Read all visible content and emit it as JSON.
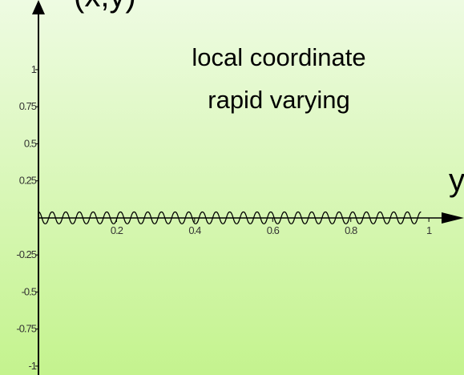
{
  "chart_data": {
    "type": "line",
    "y_label": "(x,y)",
    "x_label": "y",
    "annotations": [
      "local coordinate",
      "rapid varying"
    ],
    "x": [
      0,
      0.0175,
      0.035,
      0.0525,
      0.07,
      0.0875,
      0.105,
      0.1225,
      0.14,
      0.1575,
      0.175,
      0.1925,
      0.21,
      0.2275,
      0.245,
      0.2625,
      0.28,
      0.2975,
      0.315,
      0.3325,
      0.35,
      0.3675,
      0.385,
      0.4025,
      0.42,
      0.4375,
      0.455,
      0.4725,
      0.49,
      0.5075,
      0.525,
      0.5425,
      0.56,
      0.5775,
      0.595,
      0.6125,
      0.63,
      0.6475,
      0.665,
      0.6825,
      0.7,
      0.7175,
      0.735,
      0.7525,
      0.77,
      0.7875,
      0.805,
      0.8225,
      0.84,
      0.8575,
      0.875,
      0.8925,
      0.91,
      0.9275,
      0.945,
      0.9625,
      0.98
    ],
    "values": [
      0.04,
      -0.04,
      0.04,
      -0.04,
      0.04,
      -0.04,
      0.04,
      -0.04,
      0.04,
      -0.04,
      0.04,
      -0.04,
      0.04,
      -0.04,
      0.04,
      -0.04,
      0.04,
      -0.04,
      0.04,
      -0.04,
      0.04,
      -0.04,
      0.04,
      -0.04,
      0.04,
      -0.04,
      0.04,
      -0.04,
      0.04,
      -0.04,
      0.04,
      -0.04,
      0.04,
      -0.04,
      0.04,
      -0.04,
      0.04,
      -0.04,
      0.04,
      -0.04,
      0.04,
      -0.04,
      0.04,
      -0.04,
      0.04,
      -0.04,
      0.04,
      -0.04,
      0.04,
      -0.04,
      0.04,
      -0.04,
      0.04,
      -0.04,
      0.04,
      -0.04,
      0.04
    ],
    "color": "#000000",
    "xlim": [
      0,
      1.09
    ],
    "ylim": [
      -1.06,
      1.47
    ],
    "xticks": [
      0.2,
      0.4,
      0.6,
      0.8,
      1
    ],
    "yticks": [
      1,
      0.75,
      0.5,
      0.25,
      -0.25,
      -0.5,
      -0.75,
      -1
    ]
  }
}
